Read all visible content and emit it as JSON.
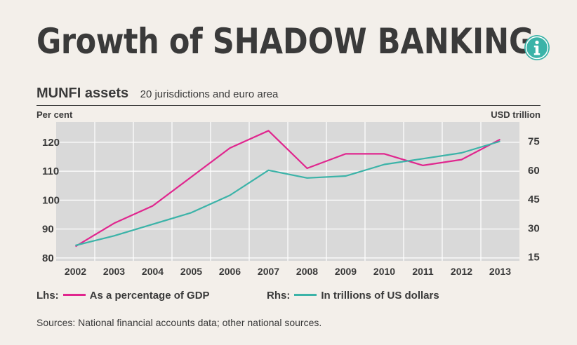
{
  "header": {
    "title_part1": "Growth of ",
    "title_part2": "SHADOW BANKING",
    "subtitle": "MUNFI assets",
    "subnote": "20 jurisdictions and euro area"
  },
  "colors": {
    "gdp_series": "#e0268e",
    "usd_series": "#3bb3a8",
    "plot_bg": "#d9d9d9",
    "text": "#3a3a3a",
    "icon_bg": "#3bb3a8"
  },
  "chart_data": {
    "type": "line",
    "title": "Growth of SHADOW BANKING",
    "subtitle": "MUNFI assets",
    "note": "20 jurisdictions and euro area",
    "categories": [
      "2002",
      "2003",
      "2004",
      "2005",
      "2006",
      "2007",
      "2008",
      "2009",
      "2010",
      "2011",
      "2012",
      "2013"
    ],
    "left_axis": {
      "label": "Per cent",
      "ticks": [
        "120",
        "110",
        "100",
        "90",
        "80"
      ],
      "tick_values": [
        120,
        110,
        100,
        90,
        80
      ],
      "range": [
        79,
        127
      ]
    },
    "right_axis": {
      "label": "USD trillion",
      "ticks": [
        "75",
        "60",
        "45",
        "30",
        "15"
      ],
      "tick_values": [
        75,
        60,
        45,
        30,
        15
      ],
      "range": [
        13,
        85
      ]
    },
    "series": [
      {
        "name": "As a percentage of GDP",
        "axis": "left",
        "prefix": "Lhs:",
        "values": [
          84,
          92,
          98,
          108,
          118,
          124,
          111,
          116,
          116,
          112,
          114,
          121
        ]
      },
      {
        "name": "In trillions of US dollars",
        "axis": "right",
        "prefix": "Rhs:",
        "values": [
          21,
          26,
          32,
          38,
          47,
          60,
          56,
          57,
          63,
          66,
          69,
          75
        ]
      }
    ],
    "grid": true
  },
  "source": "Sources: National financial accounts data; other national sources."
}
